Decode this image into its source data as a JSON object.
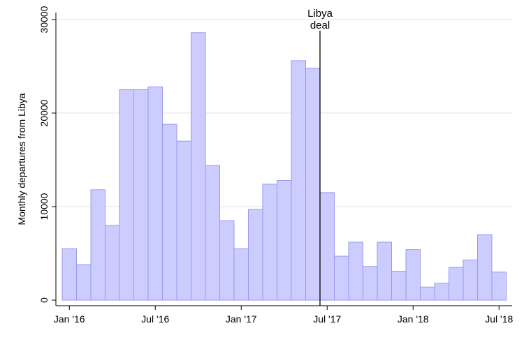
{
  "chart_data": {
    "type": "bar",
    "title": "",
    "xlabel": "",
    "ylabel": "Monthly departures from Libya",
    "ylim": [
      0,
      30000
    ],
    "yticks": [
      0,
      10000,
      20000,
      30000
    ],
    "grid": true,
    "bar_color": "#ccccff",
    "bar_edge_color": "#9999ee",
    "categories": [
      "2016-01",
      "2016-02",
      "2016-03",
      "2016-04",
      "2016-05",
      "2016-06",
      "2016-07",
      "2016-08",
      "2016-09",
      "2016-10",
      "2016-11",
      "2016-12",
      "2017-01",
      "2017-02",
      "2017-03",
      "2017-04",
      "2017-05",
      "2017-06",
      "2017-07",
      "2017-08",
      "2017-09",
      "2017-10",
      "2017-11",
      "2017-12",
      "2018-01",
      "2018-02",
      "2018-03",
      "2018-04",
      "2018-05",
      "2018-06",
      "2018-07"
    ],
    "values": [
      5500,
      3800,
      11800,
      8000,
      22500,
      22500,
      22800,
      18800,
      17000,
      28600,
      14400,
      8500,
      5500,
      9700,
      12400,
      12800,
      25600,
      24800,
      11500,
      4700,
      6200,
      3600,
      6200,
      3100,
      5400,
      1400,
      1800,
      3500,
      4300,
      7000,
      3000
    ],
    "x_tick_labels": [
      "Jan '16",
      "Jul '16",
      "Jan '17",
      "Jul '17",
      "Jan '18",
      "Jul '18"
    ],
    "x_tick_categories": [
      "2016-01",
      "2016-07",
      "2017-01",
      "2017-07",
      "2018-01",
      "2018-07"
    ],
    "annotation": {
      "lines": [
        "Libya",
        "deal"
      ],
      "between": [
        "2017-06",
        "2017-07"
      ]
    }
  }
}
